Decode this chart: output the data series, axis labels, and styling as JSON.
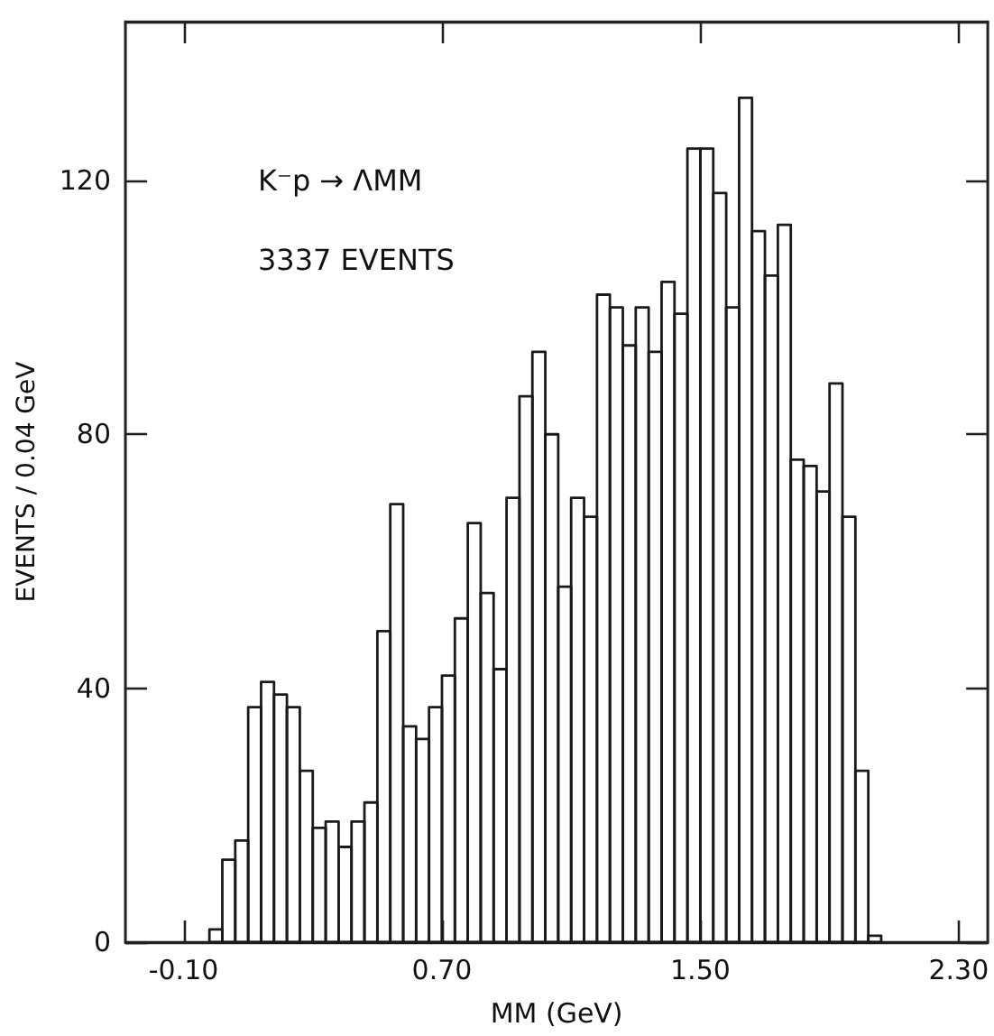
{
  "chart_data": {
    "type": "histogram",
    "xlabel": "MM (GeV)",
    "ylabel": "EVENTS / 0.04 GeV",
    "annotations": [
      "K⁻p → ΛMM",
      "3337 EVENTS"
    ],
    "bins": [
      -0.02,
      0.02,
      0.06,
      0.1,
      0.14,
      0.18,
      0.22,
      0.26,
      0.3,
      0.34,
      0.38,
      0.42,
      0.46,
      0.5,
      0.54,
      0.58,
      0.62,
      0.66,
      0.7,
      0.74,
      0.78,
      0.82,
      0.86,
      0.9,
      0.94,
      0.98,
      1.02,
      1.06,
      1.1,
      1.14,
      1.18,
      1.22,
      1.26,
      1.3,
      1.34,
      1.38,
      1.42,
      1.46,
      1.5,
      1.54,
      1.58,
      1.62,
      1.66,
      1.7,
      1.74,
      1.78,
      1.82,
      1.86,
      1.9,
      1.94,
      1.98,
      2.02,
      2.06
    ],
    "values": [
      2,
      13,
      16,
      37,
      41,
      39,
      37,
      27,
      18,
      19,
      15,
      19,
      22,
      49,
      69,
      34,
      32,
      37,
      42,
      51,
      66,
      55,
      43,
      70,
      86,
      93,
      80,
      56,
      70,
      67,
      102,
      100,
      94,
      100,
      93,
      104,
      99,
      125,
      125,
      118,
      100,
      133,
      112,
      105,
      113,
      76,
      75,
      71,
      88,
      67,
      27,
      1
    ],
    "color": "#1a1a1a",
    "xlim": [
      -0.28,
      2.39
    ],
    "ylim": [
      0,
      145
    ],
    "xticks": [
      {
        "value": -0.1,
        "label": "-0.10"
      },
      {
        "value": 0.7,
        "label": "0.70"
      },
      {
        "value": 1.5,
        "label": "1.50"
      },
      {
        "value": 2.3,
        "label": "2.30"
      }
    ],
    "yticks": [
      0,
      40,
      80,
      120
    ],
    "grid": false
  }
}
